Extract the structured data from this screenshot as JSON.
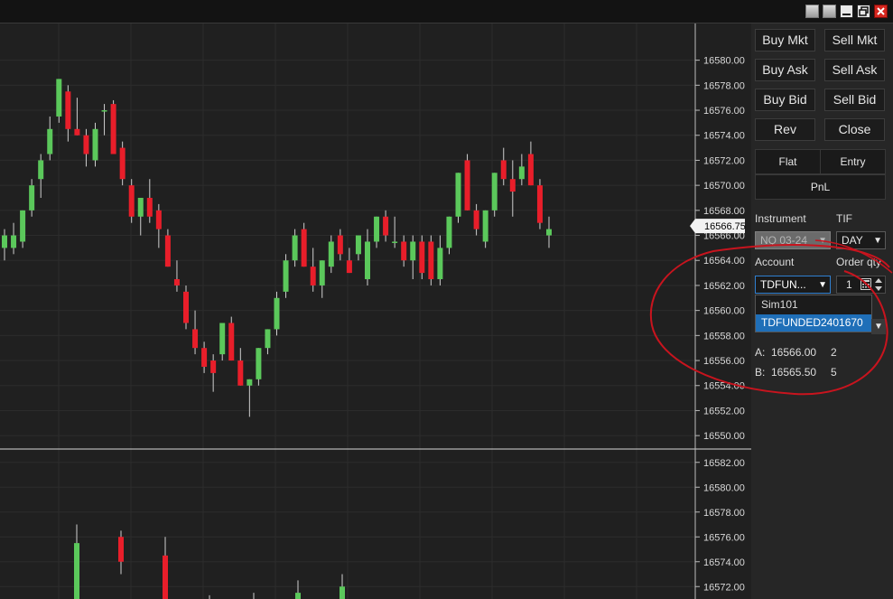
{
  "order_panel": {
    "buttons": [
      {
        "label": "Buy Mkt"
      },
      {
        "label": "Sell Mkt"
      },
      {
        "label": "Buy Ask"
      },
      {
        "label": "Sell Ask"
      },
      {
        "label": "Buy Bid"
      },
      {
        "label": "Sell Bid"
      },
      {
        "label": "Rev"
      },
      {
        "label": "Close"
      }
    ],
    "flat_label": "Flat",
    "entry_label": "Entry",
    "pnl_label": "PnL",
    "instrument_label": "Instrument",
    "instrument_value": "NQ 03-24",
    "tif_label": "TIF",
    "tif_value": "DAY",
    "account_label": "Account",
    "account_value": "TDFUN...",
    "order_qty_label": "Order qty",
    "order_qty_value": "1",
    "account_options": [
      "Sim101",
      "TDFUNDED2401670"
    ],
    "ask_label": "A:",
    "ask_price": "16566.00",
    "ask_size": "2",
    "bid_label": "B:",
    "bid_price": "16565.50",
    "bid_size": "5"
  },
  "colors": {
    "up": "#5bc85b",
    "down": "#e81e2a",
    "annotation": "#c8141e",
    "selected": "#1f6fb8"
  },
  "chart_data": [
    {
      "type": "candlestick",
      "ylim": [
        16549.0,
        16582.5
      ],
      "ticks": [
        "16580.00",
        "16578.00",
        "16576.00",
        "16574.00",
        "16572.00",
        "16570.00",
        "16568.00",
        "16566.00",
        "16564.00",
        "16562.00",
        "16560.00",
        "16558.00",
        "16556.00",
        "16554.00",
        "16552.00",
        "16550.00"
      ],
      "last_price": "16566.75",
      "candles": [
        {
          "o": 16565,
          "h": 16566.5,
          "l": 16564,
          "c": 16566
        },
        {
          "o": 16565,
          "h": 16567,
          "l": 16564.5,
          "c": 16566
        },
        {
          "o": 16565.5,
          "h": 16568,
          "l": 16565,
          "c": 16568
        },
        {
          "o": 16568,
          "h": 16570.5,
          "l": 16567.5,
          "c": 16570
        },
        {
          "o": 16570.5,
          "h": 16572.5,
          "l": 16569,
          "c": 16572
        },
        {
          "o": 16572.5,
          "h": 16575.5,
          "l": 16572,
          "c": 16574.5
        },
        {
          "o": 16575.5,
          "h": 16578.5,
          "l": 16575,
          "c": 16578.5
        },
        {
          "o": 16577.5,
          "h": 16578,
          "l": 16573.5,
          "c": 16574.5
        },
        {
          "o": 16574.5,
          "h": 16577,
          "l": 16574,
          "c": 16574
        },
        {
          "o": 16574,
          "h": 16574.5,
          "l": 16571.5,
          "c": 16572.5
        },
        {
          "o": 16572,
          "h": 16575,
          "l": 16571.5,
          "c": 16574.5
        },
        {
          "o": 16576,
          "h": 16576.5,
          "l": 16574,
          "c": 16576
        },
        {
          "o": 16576.5,
          "h": 16576.8,
          "l": 16572.5,
          "c": 16572.5
        },
        {
          "o": 16573,
          "h": 16573.5,
          "l": 16570,
          "c": 16570.5
        },
        {
          "o": 16570,
          "h": 16570.5,
          "l": 16567,
          "c": 16567.5
        },
        {
          "o": 16567.5,
          "h": 16569,
          "l": 16566,
          "c": 16569
        },
        {
          "o": 16569,
          "h": 16570.5,
          "l": 16567,
          "c": 16567.5
        },
        {
          "o": 16568,
          "h": 16568.5,
          "l": 16565,
          "c": 16566.5
        },
        {
          "o": 16566,
          "h": 16566.5,
          "l": 16563.5,
          "c": 16563.5
        },
        {
          "o": 16562.5,
          "h": 16564,
          "l": 16561.5,
          "c": 16562
        },
        {
          "o": 16561.5,
          "h": 16562,
          "l": 16558.5,
          "c": 16559
        },
        {
          "o": 16558.5,
          "h": 16560,
          "l": 16556.5,
          "c": 16557
        },
        {
          "o": 16557,
          "h": 16557.5,
          "l": 16555,
          "c": 16555.5
        },
        {
          "o": 16556,
          "h": 16556.5,
          "l": 16553.5,
          "c": 16555
        },
        {
          "o": 16556.5,
          "h": 16559,
          "l": 16556,
          "c": 16559
        },
        {
          "o": 16559,
          "h": 16559.5,
          "l": 16556,
          "c": 16556
        },
        {
          "o": 16556,
          "h": 16557,
          "l": 16554,
          "c": 16554
        },
        {
          "o": 16554,
          "h": 16554.5,
          "l": 16551.5,
          "c": 16554.5
        },
        {
          "o": 16554.5,
          "h": 16557,
          "l": 16554,
          "c": 16557
        },
        {
          "o": 16557,
          "h": 16558.5,
          "l": 16556.5,
          "c": 16558.5
        },
        {
          "o": 16558.5,
          "h": 16561.5,
          "l": 16558,
          "c": 16561
        },
        {
          "o": 16561.5,
          "h": 16564.5,
          "l": 16561,
          "c": 16564
        },
        {
          "o": 16564,
          "h": 16566.5,
          "l": 16563.5,
          "c": 16566
        },
        {
          "o": 16566.5,
          "h": 16567,
          "l": 16563.5,
          "c": 16563.5
        },
        {
          "o": 16563.5,
          "h": 16565,
          "l": 16561.5,
          "c": 16562
        },
        {
          "o": 16562,
          "h": 16564,
          "l": 16561,
          "c": 16564
        },
        {
          "o": 16563.5,
          "h": 16566,
          "l": 16563,
          "c": 16565.5
        },
        {
          "o": 16566,
          "h": 16566.5,
          "l": 16564,
          "c": 16564.5
        },
        {
          "o": 16564,
          "h": 16565,
          "l": 16563,
          "c": 16563
        },
        {
          "o": 16564.5,
          "h": 16566,
          "l": 16564,
          "c": 16566
        },
        {
          "o": 16562.5,
          "h": 16566.5,
          "l": 16562,
          "c": 16565.5
        },
        {
          "o": 16565.5,
          "h": 16567.5,
          "l": 16565,
          "c": 16567.5
        },
        {
          "o": 16567.5,
          "h": 16568,
          "l": 16565.5,
          "c": 16566
        },
        {
          "o": 16565.5,
          "h": 16567.5,
          "l": 16565,
          "c": 16565.5
        },
        {
          "o": 16565.5,
          "h": 16566,
          "l": 16563.5,
          "c": 16564
        },
        {
          "o": 16564,
          "h": 16566,
          "l": 16562.5,
          "c": 16565.5
        },
        {
          "o": 16565.5,
          "h": 16566,
          "l": 16562.5,
          "c": 16563
        },
        {
          "o": 16565.5,
          "h": 16566,
          "l": 16562,
          "c": 16562.5
        },
        {
          "o": 16562.5,
          "h": 16566,
          "l": 16562,
          "c": 16565
        },
        {
          "o": 16565,
          "h": 16567.5,
          "l": 16564.5,
          "c": 16567.5
        },
        {
          "o": 16567.5,
          "h": 16571,
          "l": 16567,
          "c": 16571
        },
        {
          "o": 16572,
          "h": 16572.5,
          "l": 16568,
          "c": 16568
        },
        {
          "o": 16568,
          "h": 16568.5,
          "l": 16566,
          "c": 16566.5
        },
        {
          "o": 16565.5,
          "h": 16568,
          "l": 16565,
          "c": 16568
        },
        {
          "o": 16568,
          "h": 16571,
          "l": 16567.5,
          "c": 16571
        },
        {
          "o": 16572,
          "h": 16573,
          "l": 16570,
          "c": 16570.5
        },
        {
          "o": 16570.5,
          "h": 16572,
          "l": 16567.5,
          "c": 16569.5
        },
        {
          "o": 16570.5,
          "h": 16572.5,
          "l": 16570,
          "c": 16571.5
        },
        {
          "o": 16572.5,
          "h": 16573.5,
          "l": 16570,
          "c": 16570
        },
        {
          "o": 16570,
          "h": 16570.5,
          "l": 16566.5,
          "c": 16567
        },
        {
          "o": 16566,
          "h": 16567.5,
          "l": 16565,
          "c": 16566.5
        }
      ]
    },
    {
      "type": "candlestick",
      "ylim": [
        16571.0,
        16583.0
      ],
      "ticks": [
        "16582.00",
        "16580.00",
        "16578.00",
        "16576.00",
        "16574.00",
        "16572.00"
      ],
      "candles": [
        {
          "o": 16570,
          "h": 16577,
          "l": 16570,
          "c": 16575.5
        },
        {
          "o": 16576,
          "h": 16576.5,
          "l": 16573,
          "c": 16574
        },
        {
          "o": 16574.5,
          "h": 16576,
          "l": 16570,
          "c": 16570
        },
        {
          "o": 16571,
          "h": 16571.3,
          "l": 16570,
          "c": 16570.5
        },
        {
          "o": 16570,
          "h": 16571.5,
          "l": 16569.5,
          "c": 16570.5
        },
        {
          "o": 16571,
          "h": 16572.5,
          "l": 16570,
          "c": 16571.5
        },
        {
          "o": 16571,
          "h": 16573,
          "l": 16570,
          "c": 16572
        }
      ]
    }
  ]
}
